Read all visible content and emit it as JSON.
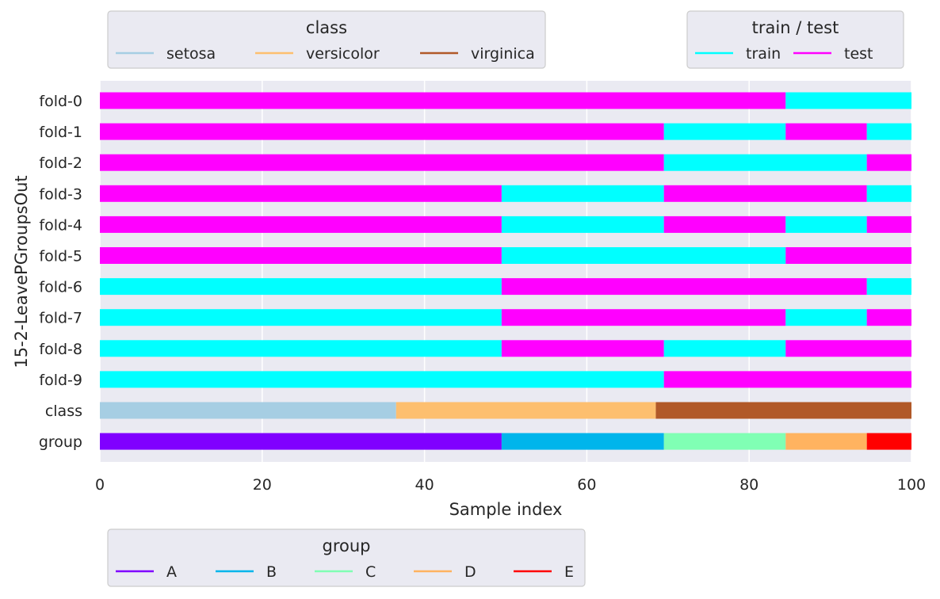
{
  "chart_data": {
    "type": "bar",
    "orientation": "horizontal-segmented",
    "xlabel": "Sample index",
    "ylabel": "15-2-LeavePGroupsOut",
    "xlim": [
      0,
      100
    ],
    "xticks": [
      0,
      20,
      40,
      60,
      80,
      100
    ],
    "grid": true,
    "rows": [
      {
        "label": "fold-0",
        "segments": [
          {
            "start": 0,
            "end": 84.5,
            "key": "test"
          },
          {
            "start": 84.5,
            "end": 100,
            "key": "train"
          }
        ]
      },
      {
        "label": "fold-1",
        "segments": [
          {
            "start": 0,
            "end": 69.5,
            "key": "test"
          },
          {
            "start": 69.5,
            "end": 84.5,
            "key": "train"
          },
          {
            "start": 84.5,
            "end": 94.5,
            "key": "test"
          },
          {
            "start": 94.5,
            "end": 100,
            "key": "train"
          }
        ]
      },
      {
        "label": "fold-2",
        "segments": [
          {
            "start": 0,
            "end": 69.5,
            "key": "test"
          },
          {
            "start": 69.5,
            "end": 94.5,
            "key": "train"
          },
          {
            "start": 94.5,
            "end": 100,
            "key": "test"
          }
        ]
      },
      {
        "label": "fold-3",
        "segments": [
          {
            "start": 0,
            "end": 49.5,
            "key": "test"
          },
          {
            "start": 49.5,
            "end": 69.5,
            "key": "train"
          },
          {
            "start": 69.5,
            "end": 94.5,
            "key": "test"
          },
          {
            "start": 94.5,
            "end": 100,
            "key": "train"
          }
        ]
      },
      {
        "label": "fold-4",
        "segments": [
          {
            "start": 0,
            "end": 49.5,
            "key": "test"
          },
          {
            "start": 49.5,
            "end": 69.5,
            "key": "train"
          },
          {
            "start": 69.5,
            "end": 84.5,
            "key": "test"
          },
          {
            "start": 84.5,
            "end": 94.5,
            "key": "train"
          },
          {
            "start": 94.5,
            "end": 100,
            "key": "test"
          }
        ]
      },
      {
        "label": "fold-5",
        "segments": [
          {
            "start": 0,
            "end": 49.5,
            "key": "test"
          },
          {
            "start": 49.5,
            "end": 84.5,
            "key": "train"
          },
          {
            "start": 84.5,
            "end": 100,
            "key": "test"
          }
        ]
      },
      {
        "label": "fold-6",
        "segments": [
          {
            "start": 0,
            "end": 49.5,
            "key": "train"
          },
          {
            "start": 49.5,
            "end": 94.5,
            "key": "test"
          },
          {
            "start": 94.5,
            "end": 100,
            "key": "train"
          }
        ]
      },
      {
        "label": "fold-7",
        "segments": [
          {
            "start": 0,
            "end": 49.5,
            "key": "train"
          },
          {
            "start": 49.5,
            "end": 84.5,
            "key": "test"
          },
          {
            "start": 84.5,
            "end": 94.5,
            "key": "train"
          },
          {
            "start": 94.5,
            "end": 100,
            "key": "test"
          }
        ]
      },
      {
        "label": "fold-8",
        "segments": [
          {
            "start": 0,
            "end": 49.5,
            "key": "train"
          },
          {
            "start": 49.5,
            "end": 69.5,
            "key": "test"
          },
          {
            "start": 69.5,
            "end": 84.5,
            "key": "train"
          },
          {
            "start": 84.5,
            "end": 100,
            "key": "test"
          }
        ]
      },
      {
        "label": "fold-9",
        "segments": [
          {
            "start": 0,
            "end": 69.5,
            "key": "train"
          },
          {
            "start": 69.5,
            "end": 100,
            "key": "test"
          }
        ]
      },
      {
        "label": "class",
        "segments": [
          {
            "start": 0,
            "end": 36.5,
            "key": "setosa"
          },
          {
            "start": 36.5,
            "end": 68.5,
            "key": "versicolor"
          },
          {
            "start": 68.5,
            "end": 100,
            "key": "virginica"
          }
        ]
      },
      {
        "label": "group",
        "segments": [
          {
            "start": 0,
            "end": 49.5,
            "key": "A"
          },
          {
            "start": 49.5,
            "end": 69.5,
            "key": "B"
          },
          {
            "start": 69.5,
            "end": 84.5,
            "key": "C"
          },
          {
            "start": 84.5,
            "end": 94.5,
            "key": "D"
          },
          {
            "start": 94.5,
            "end": 100,
            "key": "E"
          }
        ]
      }
    ],
    "colors": {
      "train": "#00ffff",
      "test": "#ff00ff",
      "setosa": "#a6cee3",
      "versicolor": "#fdbf6f",
      "virginica": "#b15928",
      "A": "#8000ff",
      "B": "#00b5eb",
      "C": "#80ffb4",
      "D": "#ffb360",
      "E": "#ff0000"
    },
    "legends": [
      {
        "id": "class",
        "title": "class",
        "placement": "top-left",
        "items": [
          "setosa",
          "versicolor",
          "virginica"
        ]
      },
      {
        "id": "traintest",
        "title": "train / test",
        "placement": "top-right",
        "items": [
          "train",
          "test"
        ]
      },
      {
        "id": "group",
        "title": "group",
        "placement": "bottom-left",
        "items": [
          "A",
          "B",
          "C",
          "D",
          "E"
        ]
      }
    ],
    "style": {
      "plot_background": "#eaeaf2",
      "grid_color": "#ffffff",
      "legend_background": "#eaeaf2",
      "legend_border": "#cccccc"
    }
  }
}
